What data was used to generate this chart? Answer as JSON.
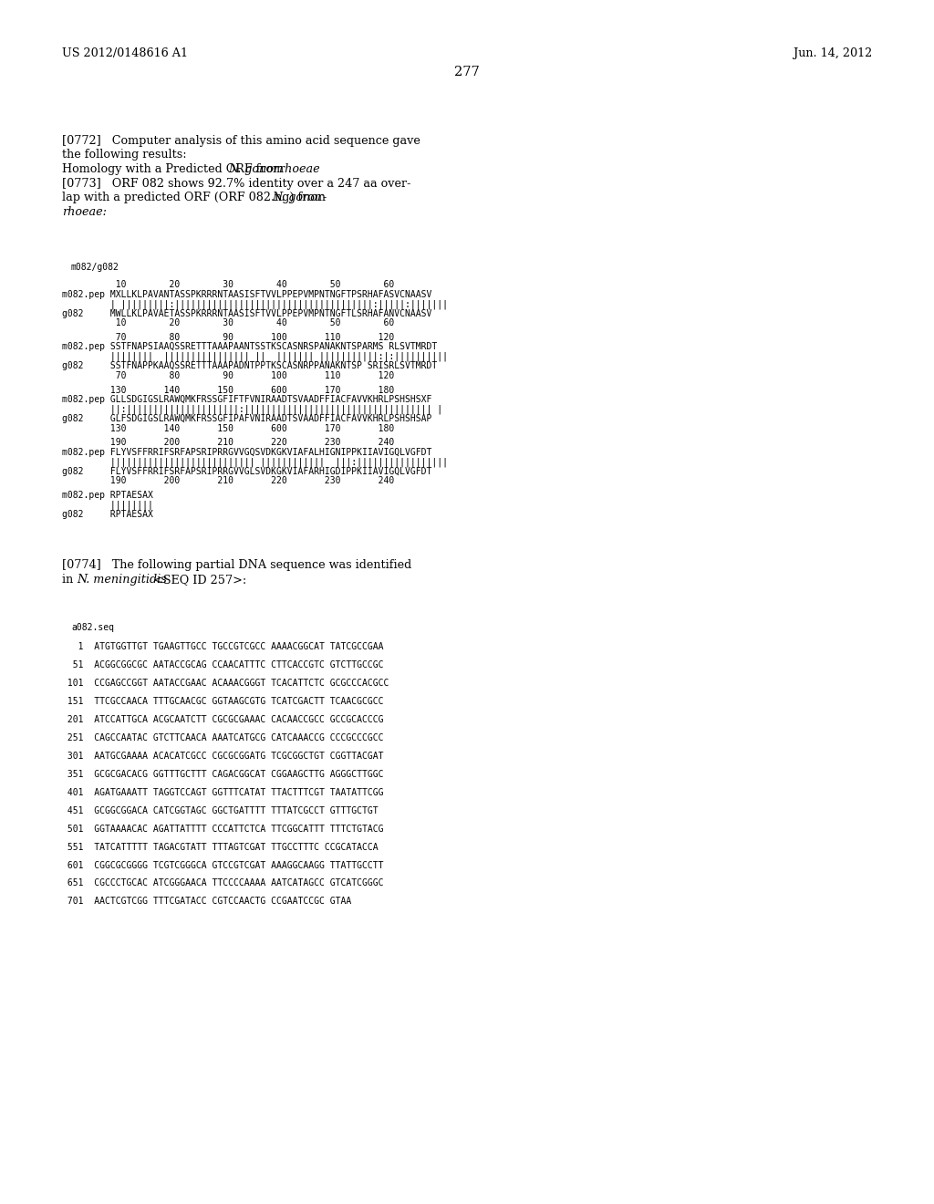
{
  "bg_color": "#ffffff",
  "header_left": "US 2012/0148616 A1",
  "header_right": "Jun. 14, 2012",
  "page_number": "277",
  "figsize": [
    10.24,
    13.2
  ],
  "dpi": 100,
  "body_fontsize": 9.2,
  "mono_fontsize": 7.0,
  "seq_blocks": [
    {
      "nums_top": "          10        20        30        40        50        60",
      "pep": "m082.pep MXLLKLPAVANTASSPKRRRNTAASISFTVVLPPEPVMPNTNGFTPSRHAFASVCNAASV",
      "bar": "         | |||||||||:|||||||||||||||||||||||||||||||||||||:|||||:|||||||",
      "g": "g082     MWLLKLPAVAETASSPKRRRNTAASISFTVVLPPEPVMPNTNGFTLSRHAFANVCNAASV",
      "nums_bot": "          10        20        30        40        50        60"
    },
    {
      "nums_top": "          70        80        90       100       110       120",
      "pep": "m082.pep SSTFNAPSIAAQSSRETTTAAAPAANTSSTKSCASNRSPANAKNTSPARMS RLSVTMRDT",
      "bar": "         ||||||||  |||||||||||||||| ||  ||||||| |||||||||||:|:||||||||||",
      "g": "g082     SSTFNAPPKAAQSSRETTTAAAPADNTPPTKSCASNRPPANAKNTSP SRISRLSVTMRDT",
      "nums_bot": "          70        80        90       100       110       120"
    },
    {
      "nums_top": "         130       140       150       600       170       180",
      "pep": "m082.pep GLLSDGIGSLRAWQMKFRSSGFIFTFVNIRAADTSVAADFFIACFAVVKHRLPSHSHSXF",
      "bar": "         ||:|||||||||||||||||||||:||||||||||||||||||||||||||||||||||| |",
      "g": "g082     GLFSDGIGSLRAWQMKFRSSGFIPAFVNIRAADTSVAADFFIACFAVVKHRLPSHSHSAP",
      "nums_bot": "         130       140       150       600       170       180"
    },
    {
      "nums_top": "         190       200       210       220       230       240",
      "pep": "m082.pep FLYVSFFRRIFSRFAPSRIPRRGVVGQSVDKGKVIAFALHIGNIPPKIIAVIGQLVGFDT",
      "bar": "         ||||||||||||||||||||||||||| ||||||||||||  |||:|||||||||||||||||",
      "g": "g082     FLYVSFFRRIFSRFAPSRIPRRGVVGLSVDKGKVIAFARHIGDIPPKIIAVIGQLVGFDT",
      "nums_bot": "         190       200       210       220       230       240"
    }
  ],
  "seq_block5": {
    "pep": "m082.pep RPTAESAX",
    "bar": "         ||||||||",
    "g": "g082     RPTAESAX"
  },
  "dna_lines": [
    "   1  ATGTGGTTGT TGAAGTTGCC TGCCGTCGCC AAAACGGCAT TATCGCCGAA",
    "  51  ACGGCGGCGC AATACCGCAG CCAACATTTC CTTCACCGTC GTCTTGCCGC",
    " 101  CCGAGCCGGT AATACCGAAC ACAAACGGGT TCACATTCTC GCGCCCACGCC",
    " 151  TTCGCCAACA TTTGCAACGC GGTAAGCGTG TCATCGACTT TCAACGCGCC",
    " 201  ATCCATTGCA ACGCAATCTT CGCGCGAAAC CACAACCGCC GCCGCACCCG",
    " 251  CAGCCAATAC GTCTTCAACA AAATCATGCG CATCAAACCG CCCGCCCGCC",
    " 301  AATGCGAAAA ACACATCGCC CGCGCGGATG TCGCGGCTGT CGGTTACGAT",
    " 351  GCGCGACACG GGTTTGCTTT CAGACGGCAT CGGAAGCTTG AGGGCTTGGC",
    " 401  AGATGAAATT TAGGTCCAGT GGTTTCATAT TTACTTTCGT TAATATTCGG",
    " 451  GCGGCGGACA CATCGGTAGC GGCTGATTTT TTTATCGCCT GTTTGCTGT",
    " 501  GGTAAAACAC AGATTATTTT CCCATTCTCA TTCGGCATTT TTTCTGTACG",
    " 551  TATCATTTTT TAGACGTATT TTTAGTCGAT TTGCCTTTC CCGCATACCA",
    " 601  CGGCGCGGGG TCGTCGGGCA GTCCGTCGAT AAAGGCAAGG TTATTGCCTT",
    " 651  CGCCCTGCAC ATCGGGAACA TTCCCCAAAA AATCATAGCC GTCATCGGGC",
    " 701  AACTCGTCGG TTTCGATACC CGTCCAACTG CCGAATCCGC GTAA"
  ]
}
